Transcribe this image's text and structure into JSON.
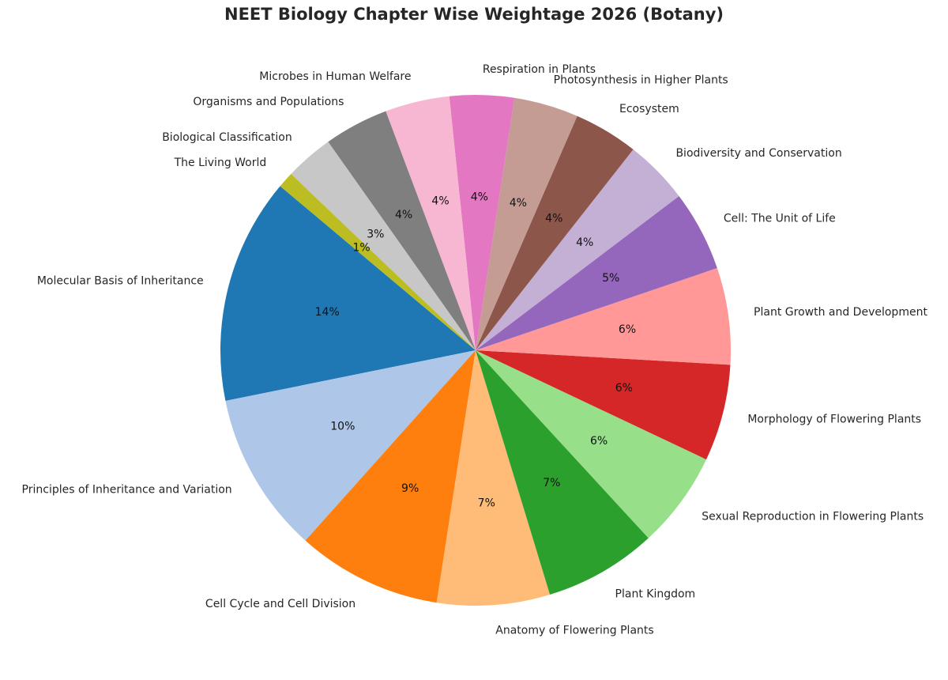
{
  "chart_data": {
    "type": "pie",
    "title": "NEET Biology Chapter Wise Weightage 2026 (Botany)",
    "start_angle_deg": 140,
    "direction": "counterclockwise",
    "autopct_format": "%.0f%%",
    "slices": [
      {
        "label": "Molecular Basis of Inheritance",
        "value": 14,
        "percent_label": "14%",
        "color": "#1f77b4"
      },
      {
        "label": "Principles of Inheritance and Variation",
        "value": 10,
        "percent_label": "10%",
        "color": "#aec7e8"
      },
      {
        "label": "Cell Cycle and Cell Division",
        "value": 9,
        "percent_label": "9%",
        "color": "#ff7f0e"
      },
      {
        "label": "Anatomy of Flowering Plants",
        "value": 7,
        "percent_label": "7%",
        "color": "#ffbb78"
      },
      {
        "label": "Plant Kingdom",
        "value": 7,
        "percent_label": "7%",
        "color": "#2ca02c"
      },
      {
        "label": "Sexual Reproduction in Flowering Plants",
        "value": 6,
        "percent_label": "6%",
        "color": "#98df8a"
      },
      {
        "label": "Morphology of Flowering Plants",
        "value": 6,
        "percent_label": "6%",
        "color": "#d62728"
      },
      {
        "label": "Plant Growth and Development",
        "value": 6,
        "percent_label": "6%",
        "color": "#ff9896"
      },
      {
        "label": "Cell: The Unit of Life",
        "value": 5,
        "percent_label": "5%",
        "color": "#9467bd"
      },
      {
        "label": "Biodiversity and Conservation",
        "value": 4,
        "percent_label": "4%",
        "color": "#c5b0d5"
      },
      {
        "label": "Ecosystem",
        "value": 4,
        "percent_label": "4%",
        "color": "#8c564b"
      },
      {
        "label": "Photosynthesis in Higher Plants",
        "value": 4,
        "percent_label": "4%",
        "color": "#c49c94"
      },
      {
        "label": "Respiration in Plants",
        "value": 4,
        "percent_label": "4%",
        "color": "#e377c2"
      },
      {
        "label": "Microbes in Human Welfare",
        "value": 4,
        "percent_label": "4%",
        "color": "#f7b6d2"
      },
      {
        "label": "Organisms and Populations",
        "value": 4,
        "percent_label": "4%",
        "color": "#7f7f7f"
      },
      {
        "label": "Biological Classification",
        "value": 3,
        "percent_label": "3%",
        "color": "#c7c7c7"
      },
      {
        "label": "The Living World",
        "value": 1,
        "percent_label": "1%",
        "color": "#bcbd22"
      }
    ],
    "legend": null
  }
}
